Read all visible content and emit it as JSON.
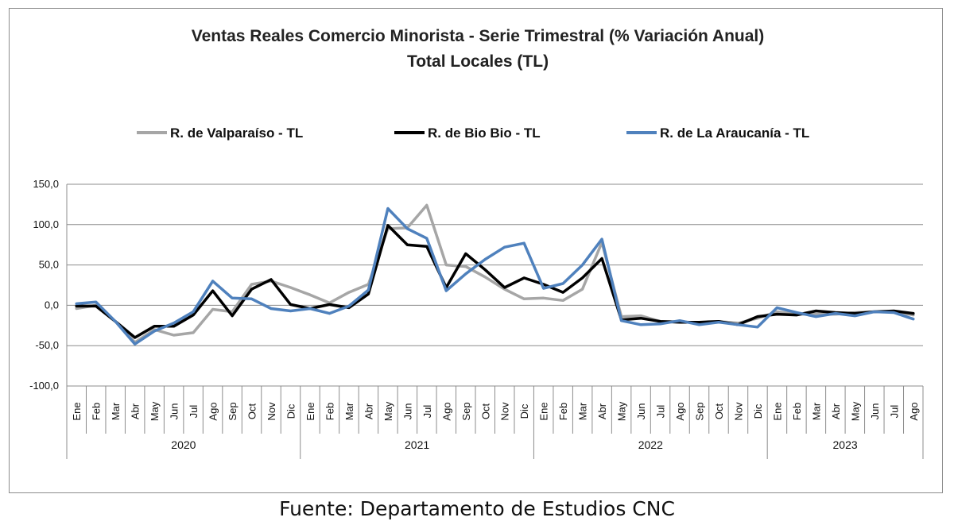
{
  "chart_data": {
    "type": "line",
    "title": "Ventas Reales Comercio Minorista - Serie Trimestral (% Variación Anual)",
    "subtitle": "Total Locales (TL)",
    "ylim": [
      -100,
      150
    ],
    "yticks": [
      "150,0",
      "100,0",
      "50,0",
      "0,0",
      "-50,0",
      "-100,0"
    ],
    "ytick_values": [
      150,
      100,
      50,
      0,
      -50,
      -100
    ],
    "grid": true,
    "legend_position": "top",
    "months": [
      "Ene",
      "Feb",
      "Mar",
      "Abr",
      "May",
      "Jun",
      "Jul",
      "Ago",
      "Sep",
      "Oct",
      "Nov",
      "Dic",
      "Ene",
      "Feb",
      "Mar",
      "Abr",
      "May",
      "Jun",
      "Jul",
      "Ago",
      "Sep",
      "Oct",
      "Nov",
      "Dic",
      "Ene",
      "Feb",
      "Mar",
      "Abr",
      "May",
      "Jun",
      "Jul",
      "Ago",
      "Sep",
      "Oct",
      "Nov",
      "Dic",
      "Ene",
      "Feb",
      "Mar",
      "Abr",
      "May",
      "Jun",
      "Jul",
      "Ago"
    ],
    "years": [
      {
        "label": "2020",
        "count": 12
      },
      {
        "label": "2021",
        "count": 12
      },
      {
        "label": "2022",
        "count": 12
      },
      {
        "label": "2023",
        "count": 8
      }
    ],
    "series": [
      {
        "name": "R. de Valparaíso - TL",
        "color": "#a6a6a6",
        "values": [
          -4,
          0,
          -20,
          -46,
          -30,
          -37,
          -34,
          -5,
          -8,
          26,
          30,
          22,
          13,
          3,
          16,
          26,
          95,
          96,
          124,
          50,
          48,
          35,
          20,
          8,
          9,
          6,
          20,
          78,
          -14,
          -13,
          -20,
          -20,
          -22,
          -20,
          -22,
          -16,
          -8,
          -11,
          -11,
          -11,
          -9,
          -8,
          -8,
          -12
        ]
      },
      {
        "name": "R. de Bio Bio - TL",
        "color": "#000000",
        "values": [
          -1,
          -1,
          -20,
          -40,
          -26,
          -26,
          -12,
          18,
          -13,
          20,
          32,
          1,
          -4,
          1,
          -3,
          14,
          99,
          75,
          73,
          22,
          64,
          44,
          22,
          34,
          26,
          16,
          34,
          58,
          -18,
          -16,
          -20,
          -21,
          -21,
          -20,
          -24,
          -14,
          -11,
          -12,
          -7,
          -9,
          -10,
          -8,
          -7,
          -10
        ]
      },
      {
        "name": "R. de La Araucanía - TL",
        "color": "#4f81bd",
        "values": [
          2,
          4,
          -20,
          -48,
          -32,
          -22,
          -8,
          30,
          9,
          8,
          -4,
          -7,
          -4,
          -10,
          -1,
          19,
          120,
          95,
          83,
          18,
          39,
          57,
          72,
          77,
          21,
          27,
          50,
          82,
          -19,
          -24,
          -23,
          -19,
          -24,
          -21,
          -24,
          -27,
          -3,
          -9,
          -14,
          -10,
          -13,
          -8,
          -9,
          -17
        ]
      }
    ]
  },
  "source": "Fuente: Departamento de Estudios CNC"
}
